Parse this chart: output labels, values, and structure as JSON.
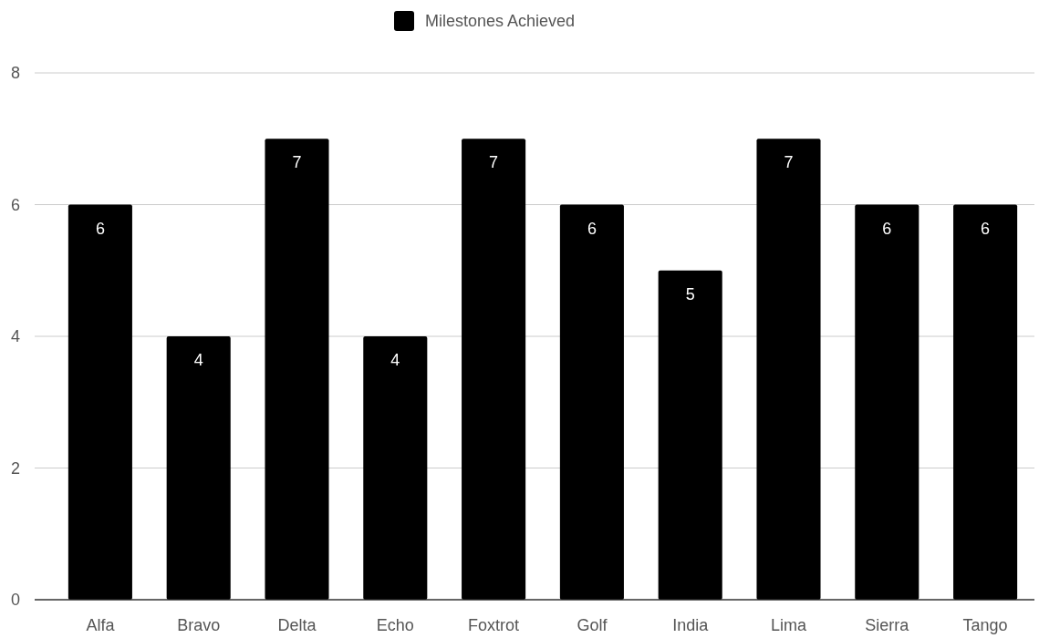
{
  "chart_data": {
    "type": "bar",
    "categories": [
      "Alfa",
      "Bravo",
      "Delta",
      "Echo",
      "Foxtrot",
      "Golf",
      "India",
      "Lima",
      "Sierra",
      "Tango"
    ],
    "series": [
      {
        "name": "Milestones Achieved",
        "color": "#000000",
        "values": [
          6,
          4,
          7,
          4,
          7,
          6,
          5,
          7,
          6,
          6
        ]
      }
    ],
    "ylim": [
      0,
      8
    ],
    "yticks": [
      0,
      2,
      4,
      6,
      8
    ],
    "grid": "y",
    "legend": "top",
    "data_labels": true
  }
}
